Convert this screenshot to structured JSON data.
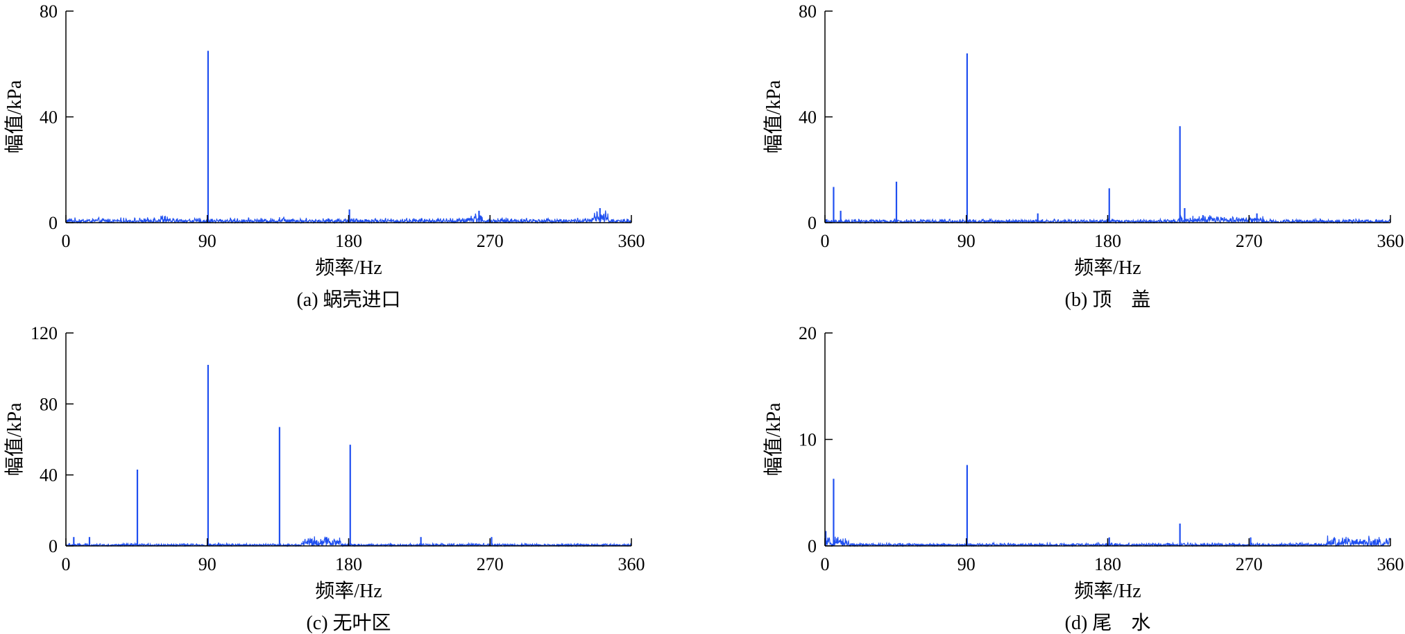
{
  "figure": {
    "line_color": "#1f4ff0",
    "axis_color": "#000000"
  },
  "chart_data": [
    {
      "panel": "a",
      "type": "line",
      "caption": "(a) 蜗壳进口",
      "xlabel": "频率/Hz",
      "ylabel": "幅值/kPa",
      "xlim": [
        0,
        360
      ],
      "ylim": [
        0,
        80
      ],
      "xticks": [
        0,
        90,
        180,
        270,
        360
      ],
      "yticks": [
        0,
        40,
        80
      ],
      "grid": false,
      "noise_floor": 1.0,
      "noise_segments": [
        {
          "from": 0,
          "to": 360,
          "max": 2.0
        },
        {
          "from": 55,
          "to": 65,
          "max": 3.5
        },
        {
          "from": 135,
          "to": 145,
          "max": 3.0
        },
        {
          "from": 255,
          "to": 265,
          "max": 4.0
        },
        {
          "from": 335,
          "to": 345,
          "max": 5.0
        }
      ],
      "peaks": [
        {
          "x": 90.5,
          "y": 65
        },
        {
          "x": 180.5,
          "y": 5
        },
        {
          "x": 263,
          "y": 4.5
        },
        {
          "x": 340,
          "y": 5.5
        }
      ]
    },
    {
      "panel": "b",
      "type": "line",
      "caption": "(b) 顶　盖",
      "xlabel": "频率/Hz",
      "ylabel": "幅值/kPa",
      "xlim": [
        0,
        360
      ],
      "ylim": [
        0,
        80
      ],
      "xticks": [
        0,
        90,
        180,
        270,
        360
      ],
      "yticks": [
        0,
        40,
        80
      ],
      "grid": false,
      "noise_floor": 0.8,
      "noise_segments": [
        {
          "from": 0,
          "to": 360,
          "max": 1.5
        },
        {
          "from": 225,
          "to": 280,
          "max": 3.0
        }
      ],
      "peaks": [
        {
          "x": 5.5,
          "y": 13.5
        },
        {
          "x": 10,
          "y": 4.5
        },
        {
          "x": 45.5,
          "y": 15.5
        },
        {
          "x": 90.5,
          "y": 64
        },
        {
          "x": 135.5,
          "y": 3.5
        },
        {
          "x": 181,
          "y": 13
        },
        {
          "x": 226,
          "y": 36.5
        },
        {
          "x": 229,
          "y": 5.5
        },
        {
          "x": 275,
          "y": 3.5
        }
      ]
    },
    {
      "panel": "c",
      "type": "line",
      "caption": "(c) 无叶区",
      "xlabel": "频率/Hz",
      "ylabel": "幅值/kPa",
      "xlim": [
        0,
        360
      ],
      "ylim": [
        0,
        120
      ],
      "xticks": [
        0,
        90,
        180,
        270,
        360
      ],
      "yticks": [
        0,
        40,
        80,
        120
      ],
      "grid": false,
      "noise_floor": 0.8,
      "noise_segments": [
        {
          "from": 0,
          "to": 360,
          "max": 1.5
        },
        {
          "from": 150,
          "to": 175,
          "max": 6.0
        }
      ],
      "peaks": [
        {
          "x": 5,
          "y": 5
        },
        {
          "x": 15,
          "y": 5
        },
        {
          "x": 45.5,
          "y": 43
        },
        {
          "x": 90.5,
          "y": 102
        },
        {
          "x": 136,
          "y": 67
        },
        {
          "x": 181,
          "y": 57
        },
        {
          "x": 226,
          "y": 5
        },
        {
          "x": 271,
          "y": 5
        }
      ]
    },
    {
      "panel": "d",
      "type": "line",
      "caption": "(d) 尾　水",
      "xlabel": "频率/Hz",
      "ylabel": "幅值/kPa",
      "xlim": [
        0,
        360
      ],
      "ylim": [
        0,
        20
      ],
      "xticks": [
        0,
        90,
        180,
        270,
        360
      ],
      "yticks": [
        0,
        10,
        20
      ],
      "grid": false,
      "noise_floor": 0.15,
      "noise_segments": [
        {
          "from": 0,
          "to": 360,
          "max": 0.3
        },
        {
          "from": 0,
          "to": 15,
          "max": 0.9
        },
        {
          "from": 320,
          "to": 360,
          "max": 1.0
        }
      ],
      "peaks": [
        {
          "x": 0.5,
          "y": 1.4
        },
        {
          "x": 5.5,
          "y": 6.3
        },
        {
          "x": 90.5,
          "y": 7.6
        },
        {
          "x": 181,
          "y": 0.8
        },
        {
          "x": 226,
          "y": 2.1
        },
        {
          "x": 271,
          "y": 0.8
        }
      ]
    }
  ]
}
